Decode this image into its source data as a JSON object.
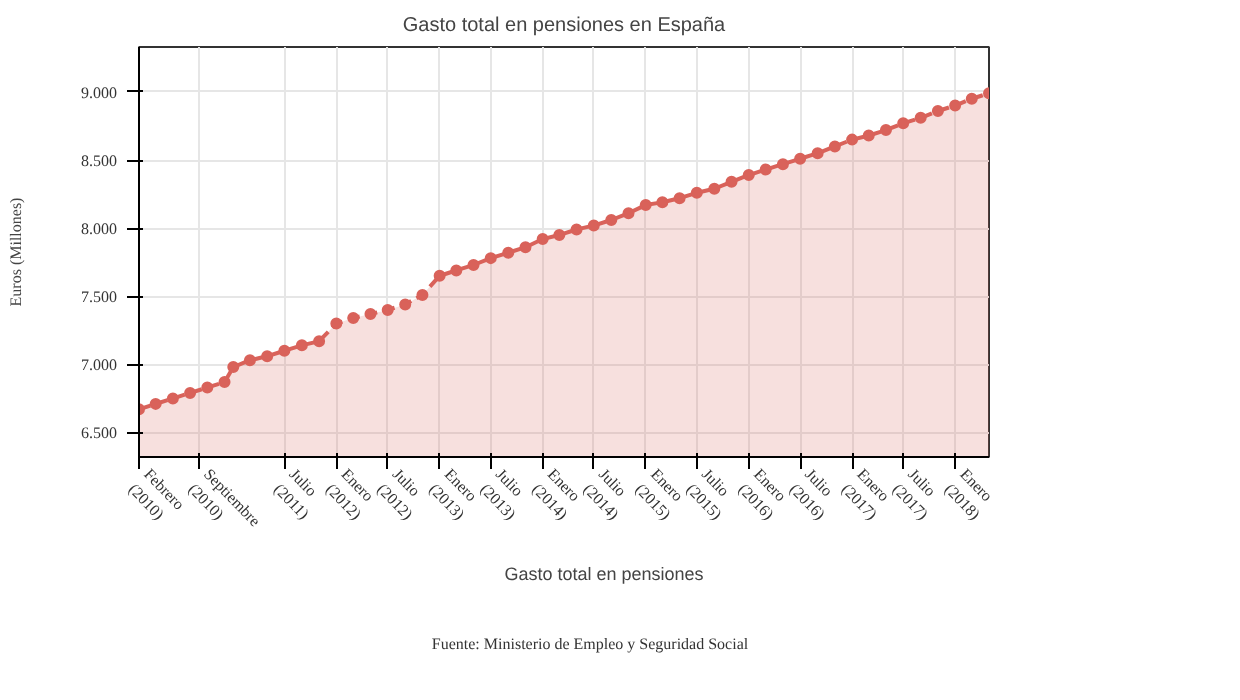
{
  "chart_data": {
    "type": "area",
    "title": "Gasto total en pensiones en España",
    "ylabel": "Euros (Millones)",
    "annotations": [
      "Fuente: Ministerio de Empleo y Seguridad Social"
    ],
    "x": [
      "2010-02",
      "2010-04",
      "2010-06",
      "2010-08",
      "2010-10",
      "2010-12",
      "2011-01",
      "2011-03",
      "2011-05",
      "2011-07",
      "2011-09",
      "2011-11",
      "2012-01",
      "2012-03",
      "2012-05",
      "2012-07",
      "2012-09",
      "2012-11",
      "2013-01",
      "2013-03",
      "2013-05",
      "2013-07",
      "2013-09",
      "2013-11",
      "2014-01",
      "2014-03",
      "2014-05",
      "2014-07",
      "2014-09",
      "2014-11",
      "2015-01",
      "2015-03",
      "2015-05",
      "2015-07",
      "2015-09",
      "2015-11",
      "2016-01",
      "2016-03",
      "2016-05",
      "2016-07",
      "2016-09",
      "2016-11",
      "2017-01",
      "2017-03",
      "2017-05",
      "2017-07",
      "2017-09",
      "2017-11",
      "2018-01",
      "2018-03",
      "2018-05"
    ],
    "series": [
      {
        "name": "Gasto total en pensiones",
        "color": "#d9625a",
        "values": [
          6670,
          6710,
          6750,
          6790,
          6830,
          6870,
          6980,
          7030,
          7060,
          7100,
          7140,
          7170,
          7300,
          7340,
          7370,
          7400,
          7440,
          7510,
          7650,
          7690,
          7730,
          7780,
          7820,
          7860,
          7920,
          7950,
          7990,
          8020,
          8060,
          8110,
          8170,
          8190,
          8220,
          8260,
          8290,
          8340,
          8390,
          8430,
          8470,
          8510,
          8550,
          8600,
          8650,
          8680,
          8720,
          8770,
          8810,
          8860,
          8900,
          8950,
          8990
        ]
      }
    ],
    "xlim": [
      "2010-02",
      "2018-05"
    ],
    "xticks": [
      {
        "value": "2010-02",
        "label": "Febrero (2010)"
      },
      {
        "value": "2010-09",
        "label": "Septiembre (2010)"
      },
      {
        "value": "2011-07",
        "label": "Julio (2011)"
      },
      {
        "value": "2012-01",
        "label": "Enero (2012)"
      },
      {
        "value": "2012-07",
        "label": "Julio (2012)"
      },
      {
        "value": "2013-01",
        "label": "Enero (2013)"
      },
      {
        "value": "2013-07",
        "label": "Julio (2013)"
      },
      {
        "value": "2014-01",
        "label": "Enero (2014)"
      },
      {
        "value": "2014-07",
        "label": "Julio (2014)"
      },
      {
        "value": "2015-01",
        "label": "Enero (2015)"
      },
      {
        "value": "2015-07",
        "label": "Julio (2015)"
      },
      {
        "value": "2016-01",
        "label": "Enero (2016)"
      },
      {
        "value": "2016-07",
        "label": "Julio (2016)"
      },
      {
        "value": "2017-01",
        "label": "Enero (2017)"
      },
      {
        "value": "2017-07",
        "label": "Julio (2017)"
      },
      {
        "value": "2018-01",
        "label": "Enero (2018)"
      }
    ],
    "ylim": [
      6320,
      9330
    ],
    "yticks": [
      {
        "value": 6500,
        "label": "6.500"
      },
      {
        "value": 7000,
        "label": "7.000"
      },
      {
        "value": 7500,
        "label": "7.500"
      },
      {
        "value": 8000,
        "label": "8.000"
      },
      {
        "value": 8500,
        "label": "8.500"
      },
      {
        "value": 9000,
        "label": "9.000"
      }
    ],
    "grid": true,
    "legend": "bottom",
    "marker": "circle",
    "line_style": "dashed"
  }
}
